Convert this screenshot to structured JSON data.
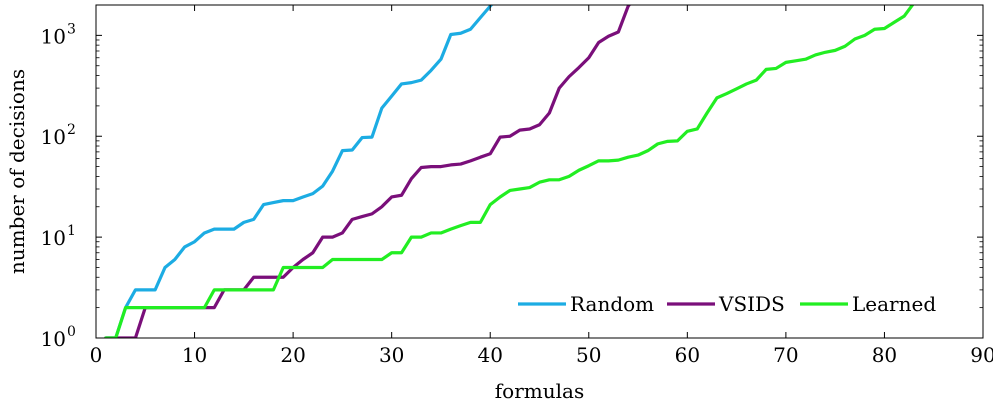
{
  "chart_data": {
    "type": "line",
    "title": "",
    "xlabel": "formulas",
    "ylabel": "number of decisions",
    "xlim": [
      0,
      90
    ],
    "ylim": [
      1,
      2000
    ],
    "yscale": "log",
    "grid": false,
    "legend_position": "bottom-right",
    "x_ticks": [
      {
        "value": 0,
        "label": "0"
      },
      {
        "value": 10,
        "label": "10"
      },
      {
        "value": 20,
        "label": "20"
      },
      {
        "value": 30,
        "label": "30"
      },
      {
        "value": 40,
        "label": "40"
      },
      {
        "value": 50,
        "label": "50"
      },
      {
        "value": 60,
        "label": "60"
      },
      {
        "value": 70,
        "label": "70"
      },
      {
        "value": 80,
        "label": "80"
      },
      {
        "value": 90,
        "label": "90"
      }
    ],
    "y_ticks": [
      {
        "value": 1,
        "base": "10",
        "exp": "0"
      },
      {
        "value": 10,
        "base": "10",
        "exp": "1"
      },
      {
        "value": 100,
        "base": "10",
        "exp": "2"
      },
      {
        "value": 1000,
        "base": "10",
        "exp": "3"
      }
    ],
    "series": [
      {
        "name": "Random",
        "color": "#1cace3",
        "x": [
          1,
          2,
          3,
          4,
          5,
          6,
          7,
          8,
          9,
          10,
          11,
          12,
          13,
          14,
          15,
          16,
          17,
          18,
          19,
          20,
          21,
          22,
          23,
          24,
          25,
          26,
          27,
          28,
          29,
          30,
          31,
          32,
          33,
          34,
          35,
          36,
          37,
          38,
          39,
          40,
          41
        ],
        "y": [
          1,
          1,
          2,
          3,
          3,
          3,
          5,
          6,
          8,
          9,
          11,
          12,
          12,
          12,
          14,
          15,
          21,
          22,
          23,
          23,
          25,
          27,
          32,
          45,
          72,
          73,
          97,
          98,
          190,
          250,
          330,
          340,
          360,
          450,
          580,
          1020,
          1050,
          1150,
          1500,
          1950,
          2500
        ]
      },
      {
        "name": "VSIDS",
        "color": "#7a0f7a",
        "x": [
          1,
          2,
          3,
          4,
          5,
          6,
          7,
          8,
          9,
          10,
          11,
          12,
          13,
          14,
          15,
          16,
          17,
          18,
          19,
          20,
          21,
          22,
          23,
          24,
          25,
          26,
          27,
          28,
          29,
          30,
          31,
          32,
          33,
          34,
          35,
          36,
          37,
          38,
          39,
          40,
          41,
          42,
          43,
          44,
          45,
          46,
          47,
          48,
          49,
          50,
          51,
          52,
          53,
          54,
          55
        ],
        "y": [
          1,
          1,
          1,
          1,
          2,
          2,
          2,
          2,
          2,
          2,
          2,
          2,
          3,
          3,
          3,
          4,
          4,
          4,
          4,
          5,
          6,
          7,
          10,
          10,
          11,
          15,
          16,
          17,
          20,
          25,
          26,
          38,
          49,
          50,
          50,
          52,
          53,
          57,
          62,
          67,
          98,
          100,
          115,
          118,
          130,
          170,
          300,
          390,
          480,
          600,
          850,
          980,
          1080,
          1950,
          2600
        ]
      },
      {
        "name": "Learned",
        "color": "#22ee22",
        "x": [
          1,
          2,
          3,
          4,
          5,
          6,
          7,
          8,
          9,
          10,
          11,
          12,
          13,
          14,
          15,
          16,
          17,
          18,
          19,
          20,
          21,
          22,
          23,
          24,
          25,
          26,
          27,
          28,
          29,
          30,
          31,
          32,
          33,
          34,
          35,
          36,
          37,
          38,
          39,
          40,
          41,
          42,
          43,
          44,
          45,
          46,
          47,
          48,
          49,
          50,
          51,
          52,
          53,
          54,
          55,
          56,
          57,
          58,
          59,
          60,
          61,
          62,
          63,
          64,
          65,
          66,
          67,
          68,
          69,
          70,
          71,
          72,
          73,
          74,
          75,
          76,
          77,
          78,
          79,
          80,
          81,
          82,
          83
        ],
        "y": [
          1,
          1,
          2,
          2,
          2,
          2,
          2,
          2,
          2,
          2,
          2,
          3,
          3,
          3,
          3,
          3,
          3,
          3,
          5,
          5,
          5,
          5,
          5,
          6,
          6,
          6,
          6,
          6,
          6,
          7,
          7,
          10,
          10,
          11,
          11,
          12,
          13,
          14,
          14,
          21,
          25,
          29,
          30,
          31,
          35,
          37,
          37,
          40,
          46,
          51,
          57,
          57,
          58,
          62,
          65,
          72,
          84,
          89,
          90,
          112,
          118,
          170,
          240,
          265,
          295,
          330,
          360,
          460,
          470,
          540,
          560,
          580,
          640,
          680,
          710,
          780,
          920,
          1000,
          1150,
          1170,
          1350,
          1550,
          2100
        ]
      }
    ]
  }
}
